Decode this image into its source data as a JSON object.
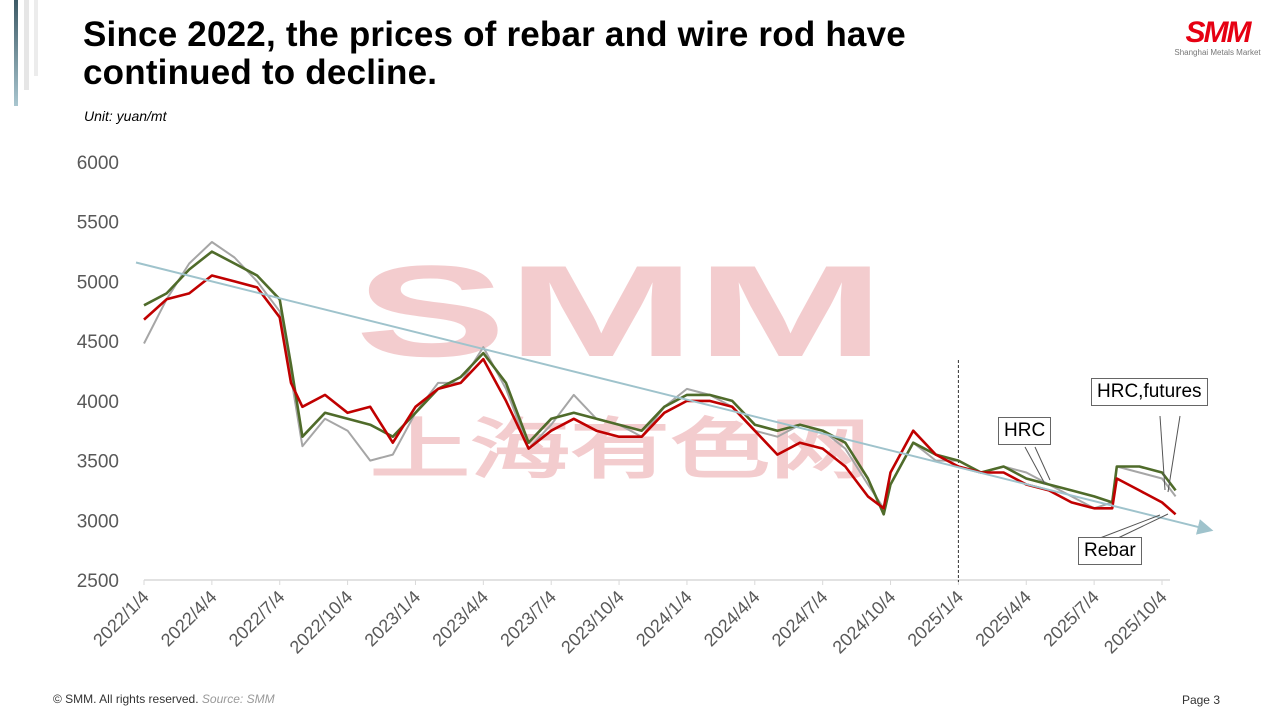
{
  "header": {
    "title": "Since 2022, the prices of rebar and wire rod have continued to decline.",
    "unit": "Unit:  yuan/mt"
  },
  "logo": {
    "mark": "SMM",
    "subtitle": "Shanghai Metals Market"
  },
  "watermark": {
    "line1": "SMM",
    "line2": "上海有色网"
  },
  "footer": {
    "copyright": "© SMM. All rights reserved.",
    "source": "Source: SMM",
    "page": "Page 3"
  },
  "colors": {
    "rebar": "#c00000",
    "hrc": "#4f6b2a",
    "futures": "#a6a6a6",
    "trend": "#9fc3cc",
    "watermark": "#f2c4c6"
  },
  "chart_data": {
    "type": "line",
    "title": "Since 2022, the prices of rebar and wire rod have continued to decline.",
    "ylabel": "yuan/mt",
    "ylim": [
      2500,
      6000
    ],
    "yticks": [
      2500,
      3000,
      3500,
      4000,
      4500,
      5000,
      5500,
      6000
    ],
    "xticks": [
      "2022/1/4",
      "2022/4/4",
      "2022/7/4",
      "2022/10/4",
      "2023/1/4",
      "2023/4/4",
      "2023/7/4",
      "2023/10/4",
      "2024/1/4",
      "2024/4/4",
      "2024/7/4",
      "2024/10/4",
      "2025/1/4",
      "2025/4/4",
      "2025/7/4",
      "2025/10/4"
    ],
    "x_unit": "months since 2022/1/4",
    "x": [
      0,
      1,
      2,
      3,
      4,
      5,
      6,
      6.5,
      7,
      8,
      9,
      10,
      11,
      12,
      13,
      14,
      15,
      16,
      17,
      18,
      19,
      20,
      21,
      22,
      23,
      24,
      25,
      26,
      27,
      28,
      29,
      30,
      31,
      32,
      32.7,
      33,
      34,
      35,
      36,
      37,
      38,
      39,
      40,
      41,
      42,
      42.8,
      43,
      44,
      45,
      45.6
    ],
    "series": [
      {
        "name": "Rebar",
        "values": [
          4680,
          4850,
          4900,
          5050,
          5000,
          4950,
          4700,
          4150,
          3950,
          4050,
          3900,
          3950,
          3650,
          3950,
          4100,
          4150,
          4350,
          4000,
          3600,
          3750,
          3850,
          3750,
          3700,
          3700,
          3900,
          4000,
          4000,
          3950,
          3750,
          3550,
          3650,
          3600,
          3450,
          3200,
          3100,
          3400,
          3750,
          3550,
          3450,
          3400,
          3400,
          3300,
          3250,
          3150,
          3100,
          3100,
          3350,
          3250,
          3150,
          3050
        ]
      },
      {
        "name": "HRC",
        "values": [
          4800,
          4900,
          5100,
          5250,
          5150,
          5050,
          4850,
          4300,
          3700,
          3900,
          3850,
          3800,
          3700,
          3900,
          4100,
          4200,
          4400,
          4150,
          3650,
          3850,
          3900,
          3850,
          3800,
          3750,
          3950,
          4050,
          4050,
          4000,
          3800,
          3750,
          3800,
          3750,
          3650,
          3350,
          3050,
          3300,
          3650,
          3550,
          3500,
          3400,
          3450,
          3350,
          3300,
          3250,
          3200,
          3150,
          3450,
          3450,
          3400,
          3250
        ]
      },
      {
        "name": "HRC,futures",
        "values": [
          4480,
          4850,
          5150,
          5330,
          5200,
          5000,
          4750,
          4200,
          3620,
          3850,
          3750,
          3500,
          3550,
          3900,
          4150,
          4150,
          4450,
          4100,
          3600,
          3800,
          4050,
          3850,
          3800,
          3700,
          3950,
          4100,
          4050,
          3950,
          3750,
          3700,
          3800,
          3750,
          3600,
          3300,
          3100,
          3300,
          3650,
          3500,
          3500,
          3400,
          3450,
          3400,
          3300,
          3200,
          3100,
          3150,
          3450,
          3400,
          3350,
          3200
        ]
      }
    ],
    "trendline": {
      "name": "trend",
      "x": [
        0,
        47.1
      ],
      "values": [
        5150,
        2920
      ]
    },
    "divider_x": 36,
    "annotations": [
      "HRC",
      "HRC,futures",
      "Rebar"
    ],
    "grid": false
  }
}
